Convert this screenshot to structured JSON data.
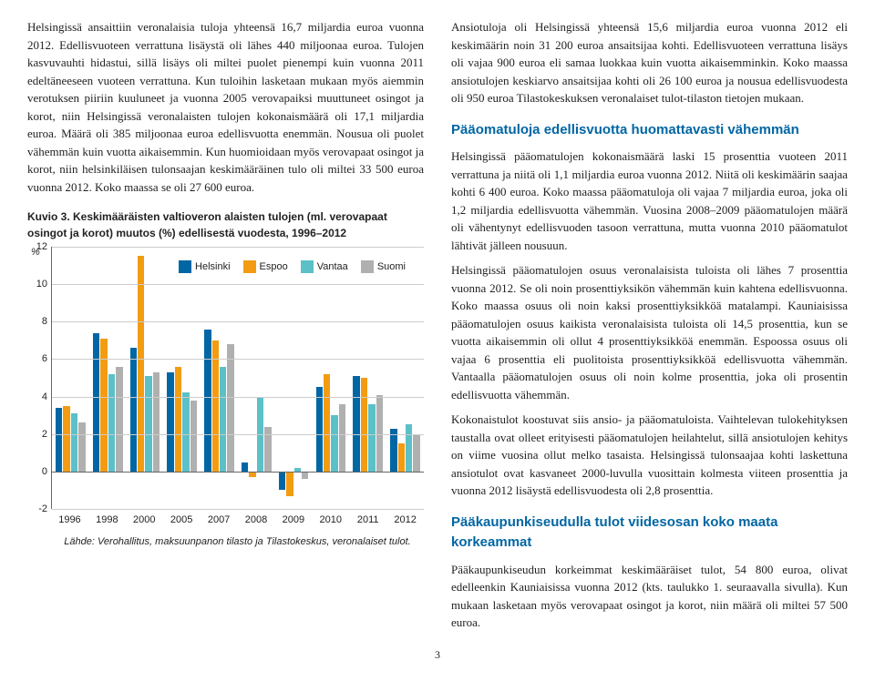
{
  "left": {
    "p1": "Helsingissä ansaittiin veronalaisia tuloja yhteensä 16,7 miljardia euroa vuonna 2012. Edellisvuoteen verrattuna lisäystä oli lähes 440 miljoonaa euroa. Tulojen kasvuvauhti hidastui, sillä lisäys oli miltei puolet pienempi kuin vuonna 2011 edeltäneeseen vuoteen verrattuna. Kun tuloihin lasketaan mukaan myös aiemmin verotuksen piiriin kuuluneet ja vuonna 2005 verovapaiksi muuttuneet osingot ja korot, niin Helsingissä veronalaisten tulojen kokonaismäärä oli 17,1 miljardia euroa. Määrä oli 385 miljoonaa euroa edellisvuotta enemmän. Nousua oli puolet vähemmän kuin vuotta aikaisemmin. Kun huomioidaan myös verovapaat osingot ja korot, niin helsinkiläisen tulonsaajan keskimääräinen tulo oli miltei 33 500 euroa vuonna 2012. Koko maassa se oli 27 600 euroa.",
    "chart_title": "Kuvio 3. Keskimääräisten valtioveron alaisten tulojen (ml. verovapaat osingot ja korot) muutos (%) edellisestä vuodesta, 1996–2012",
    "source": "Lähde: Verohallitus, maksuunpanon tilasto ja Tilastokeskus, veronalaiset tulot."
  },
  "right": {
    "p1": "Ansiotuloja oli Helsingissä yhteensä 15,6 miljardia euroa vuonna 2012 eli keskimäärin noin 31 200 euroa ansaitsijaa kohti. Edellisvuoteen verrattuna lisäys oli vajaa 900 euroa eli samaa luokkaa kuin vuotta aikaisemminkin. Koko maassa ansiotulojen keskiarvo ansaitsijaa kohti oli 26 100 euroa ja nousua edellisvuodesta oli 950 euroa Tilastokeskuksen veronalaiset tulot-tilaston tietojen mukaan.",
    "h1": "Pääomatuloja edellisvuotta huomattavasti vähemmän",
    "p2": "Helsingissä pääomatulojen kokonaismäärä laski 15 prosenttia vuoteen 2011 verrattuna ja niitä oli 1,1 miljardia euroa vuonna 2012. Niitä oli keskimäärin saajaa kohti 6 400 euroa. Koko maassa pääomatuloja oli vajaa 7 miljardia euroa, joka oli 1,2 miljardia edellisvuotta vähemmän. Vuosina 2008–2009 pääomatulojen määrä oli vähentynyt edellisvuoden tasoon verrattuna, mutta vuonna 2010 pääomatulot lähtivät jälleen nousuun.",
    "p3": "Helsingissä pääomatulojen osuus veronalaisista tuloista oli lähes 7 prosenttia vuonna 2012. Se oli noin prosenttiyksikön vähemmän kuin kahtena edellisvuonna. Koko maassa osuus oli noin kaksi prosenttiyksikköä matalampi. Kauniaisissa pääomatulojen osuus kaikista veronalaisista tuloista oli 14,5 prosenttia, kun se vuotta aikaisemmin oli ollut 4 prosenttiyksikköä enemmän. Espoossa osuus oli vajaa 6 prosenttia eli puolitoista prosenttiyksikköä edellisvuotta vähemmän. Vantaalla pääomatulojen osuus oli noin kolme prosenttia, joka oli prosentin edellisvuotta vähemmän.",
    "p4": "Kokonaistulot koostuvat siis ansio- ja pääomatuloista. Vaihtelevan tulokehityksen taustalla ovat olleet erityisesti pääomatulojen heilahtelut, sillä ansiotulojen kehitys on viime vuosina ollut melko tasaista. Helsingissä tulonsaajaa kohti laskettuna ansiotulot ovat kasvaneet 2000-luvulla vuosittain kolmesta viiteen prosenttia ja vuonna 2012 lisäystä edellisvuodesta oli 2,8 prosenttia.",
    "h2": "Pääkaupunkiseudulla tulot viidesosan koko maata korkeammat",
    "p5": "Pääkaupunkiseudun korkeimmat keskimääräiset tulot, 54 800 euroa, olivat edelleenkin Kauniaisissa vuonna 2012 (kts. taulukko 1. seuraavalla sivulla). Kun mukaan lasketaan myös verovapaat osingot ja korot, niin määrä oli miltei 57 500 euroa."
  },
  "chart": {
    "ymin": -2,
    "ymax": 12,
    "ytick_step": 2,
    "pct_label": "%",
    "colors": {
      "Helsinki": "#0066a4",
      "Espoo": "#f39c12",
      "Vantaa": "#5bc0c7",
      "Suomi": "#b0b0b0"
    },
    "legend": [
      "Helsinki",
      "Espoo",
      "Vantaa",
      "Suomi"
    ],
    "categories": [
      "1996",
      "1998",
      "2000",
      "2005",
      "2007",
      "2008",
      "2009",
      "2010",
      "2011",
      "2012"
    ],
    "series": {
      "Helsinki": [
        3.4,
        7.4,
        6.6,
        5.3,
        7.6,
        0.5,
        -1.0,
        4.5,
        5.1,
        2.3
      ],
      "Espoo": [
        3.5,
        7.1,
        11.5,
        5.6,
        7.0,
        -0.3,
        -1.3,
        5.2,
        5.0,
        1.5
      ],
      "Vantaa": [
        3.1,
        5.2,
        5.1,
        4.2,
        5.6,
        4.0,
        0.2,
        3.0,
        3.6,
        2.5
      ],
      "Suomi": [
        2.6,
        5.6,
        5.3,
        3.8,
        6.8,
        2.4,
        -0.4,
        3.6,
        4.1,
        2.0
      ]
    },
    "grid_color": "#cccccc",
    "axis_color": "#666666"
  },
  "page_number": "3"
}
